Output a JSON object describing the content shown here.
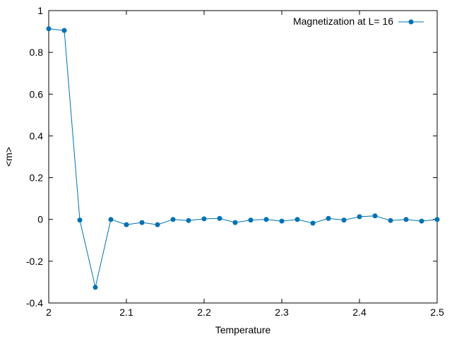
{
  "chart_data": {
    "type": "line",
    "title": "",
    "xlabel": "Temperature",
    "ylabel": "<m>",
    "xlim": [
      2.0,
      2.5
    ],
    "ylim": [
      -0.4,
      1.0
    ],
    "xticks": [
      "2",
      "2.1",
      "2.2",
      "2.3",
      "2.4",
      "2.5"
    ],
    "yticks": [
      "-0.4",
      "-0.2",
      "0",
      "0.2",
      "0.4",
      "0.6",
      "0.8",
      "1"
    ],
    "grid": false,
    "legend_position": "top-right",
    "series": [
      {
        "name": "Magnetization at L= 16",
        "color": "#0072b2",
        "marker": "circle",
        "x": [
          2.0,
          2.02,
          2.04,
          2.06,
          2.08,
          2.1,
          2.12,
          2.14,
          2.16,
          2.18,
          2.2,
          2.22,
          2.24,
          2.26,
          2.28,
          2.3,
          2.32,
          2.34,
          2.36,
          2.38,
          2.4,
          2.42,
          2.44,
          2.46,
          2.48,
          2.5
        ],
        "y": [
          0.913,
          0.905,
          -0.003,
          -0.325,
          0.0,
          -0.025,
          -0.015,
          -0.025,
          0.0,
          -0.005,
          0.003,
          0.005,
          -0.015,
          -0.003,
          0.0,
          -0.008,
          0.0,
          -0.018,
          0.005,
          -0.003,
          0.013,
          0.017,
          -0.005,
          0.0,
          -0.008,
          0.0
        ]
      }
    ]
  }
}
